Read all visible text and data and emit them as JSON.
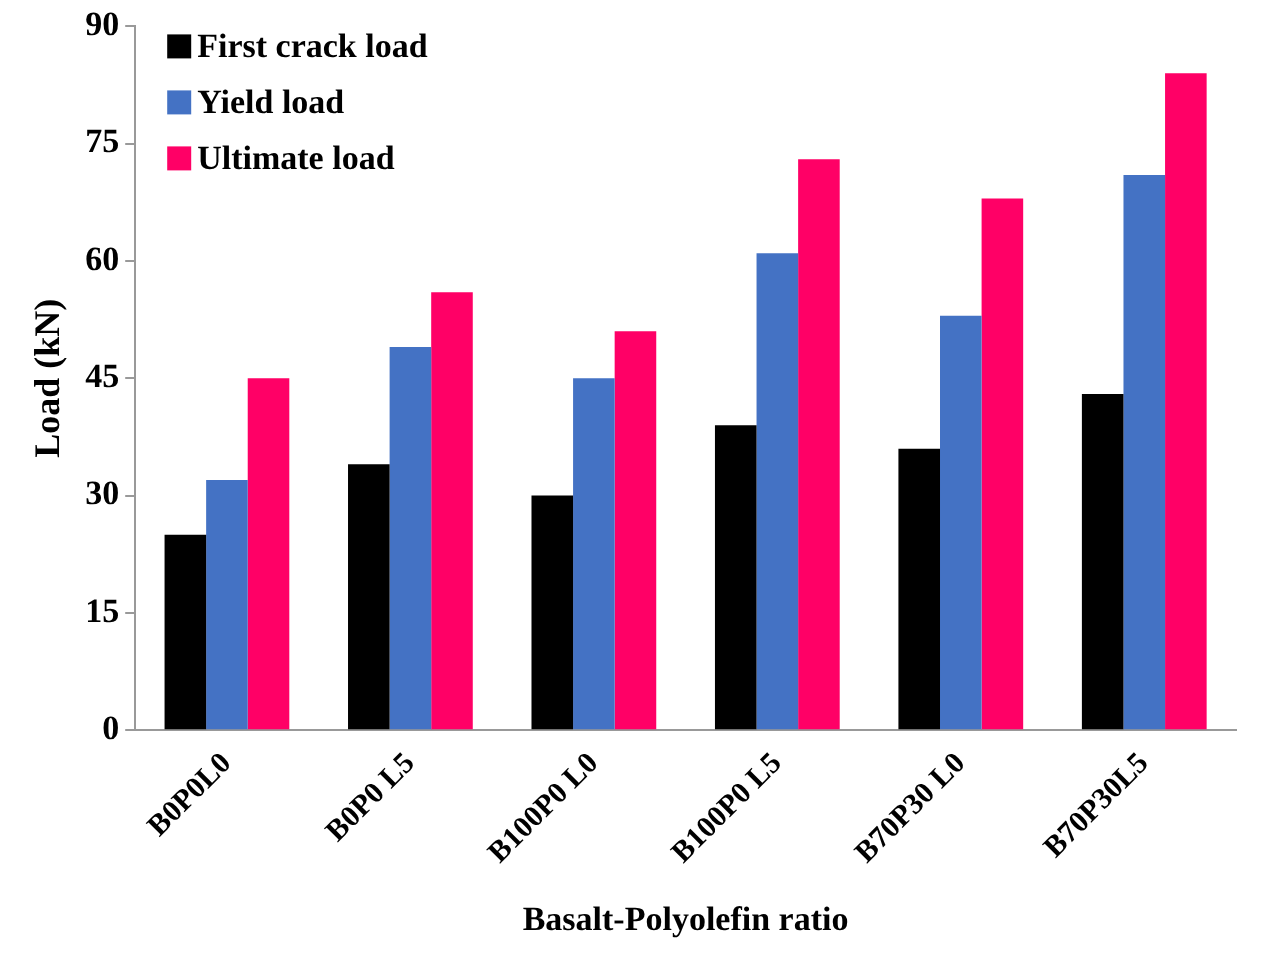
{
  "chart_data": {
    "type": "bar",
    "xlabel": "Basalt-Polyolefin ratio",
    "ylabel": "Load (kN)",
    "categories": [
      "B0P0L0",
      "B0P0 L5",
      "B100P0 L0",
      "B100P0 L5",
      "B70P30 L0",
      "B70P30L5"
    ],
    "series": [
      {
        "name": "First crack load",
        "color": "#000000",
        "values": [
          25,
          34,
          30,
          39,
          36,
          43
        ]
      },
      {
        "name": "Yield load",
        "color": "#4472c4",
        "values": [
          32,
          49,
          45,
          61,
          53,
          71
        ]
      },
      {
        "name": "Ultimate load",
        "color": "#ff0066",
        "values": [
          45,
          56,
          51,
          73,
          68,
          84
        ]
      }
    ],
    "ylim": [
      0,
      90
    ],
    "yticks": [
      0,
      15,
      30,
      45,
      60,
      75,
      90
    ],
    "grid": false,
    "legend": "top left"
  }
}
